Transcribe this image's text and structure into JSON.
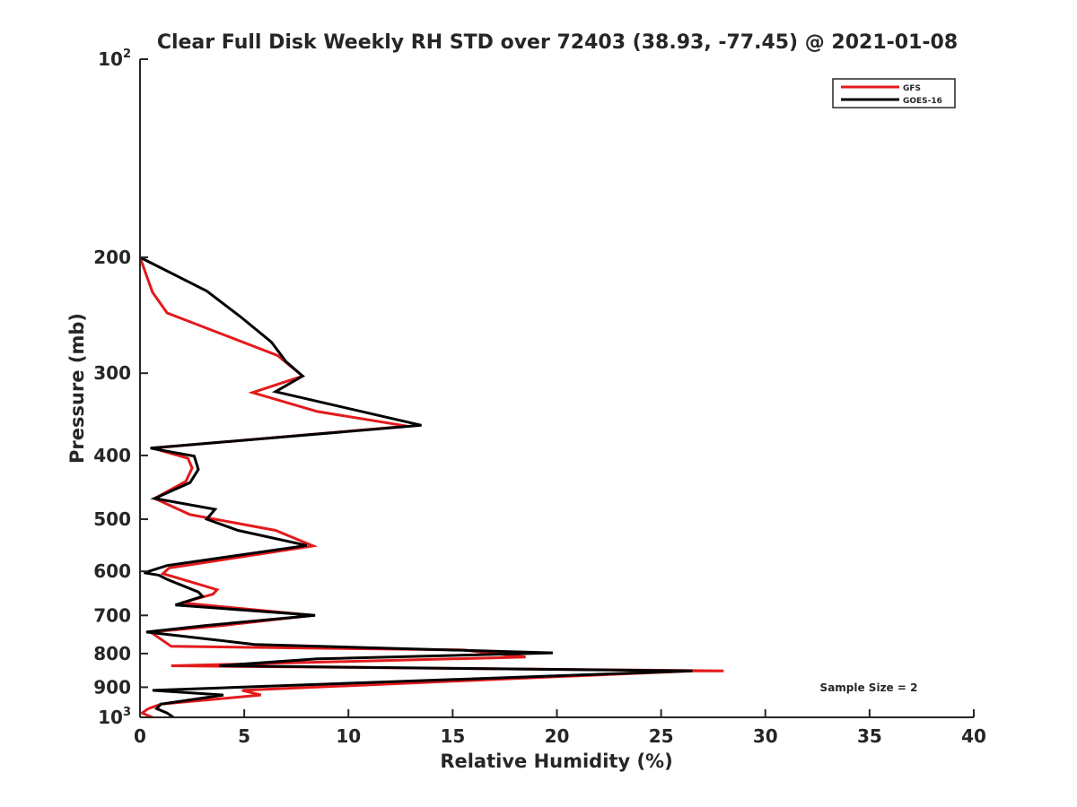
{
  "chart_data": {
    "type": "line",
    "title": "Clear Full Disk Weekly RH STD over 72403 (38.93, -77.45) @ 2021-01-08",
    "xlabel": "Relative Humidity (%)",
    "ylabel": "Pressure (mb)",
    "xlim": [
      0,
      40
    ],
    "ylim": [
      100,
      1000
    ],
    "yscale": "log",
    "y_reversed": true,
    "grid": false,
    "legend_position": "top-right",
    "xticks": [
      "0",
      "5",
      "10",
      "15",
      "20",
      "25",
      "30",
      "35",
      "40"
    ],
    "xtick_values": [
      0,
      5,
      10,
      15,
      20,
      25,
      30,
      35,
      40
    ],
    "yticks": [
      {
        "value": 100,
        "base": "10",
        "exp": "2"
      },
      {
        "value": 200,
        "label": "200"
      },
      {
        "value": 300,
        "label": "300"
      },
      {
        "value": 400,
        "label": "400"
      },
      {
        "value": 500,
        "label": "500"
      },
      {
        "value": 600,
        "label": "600"
      },
      {
        "value": 700,
        "label": "700"
      },
      {
        "value": 800,
        "label": "800"
      },
      {
        "value": 900,
        "label": "900"
      },
      {
        "value": 1000,
        "base": "10",
        "exp": "3"
      }
    ],
    "annotation": "Sample Size = 2",
    "series": [
      {
        "name": "GFS",
        "color": "#e31a1c",
        "points": [
          [
            0.6,
            1000
          ],
          [
            0.1,
            985
          ],
          [
            0.4,
            970
          ],
          [
            1.0,
            955
          ],
          [
            5.8,
            925
          ],
          [
            4.9,
            910
          ],
          [
            26.5,
            850
          ],
          [
            28.0,
            850
          ],
          [
            1.5,
            835
          ],
          [
            18.5,
            810
          ],
          [
            15.5,
            790
          ],
          [
            1.5,
            780
          ],
          [
            0.5,
            742
          ],
          [
            4.0,
            725
          ],
          [
            8.3,
            700
          ],
          [
            2.0,
            670
          ],
          [
            3.5,
            650
          ],
          [
            3.7,
            640
          ],
          [
            1.5,
            610
          ],
          [
            1.1,
            605
          ],
          [
            1.4,
            593
          ],
          [
            8.3,
            549
          ],
          [
            6.5,
            520
          ],
          [
            2.4,
            492
          ],
          [
            0.7,
            465
          ],
          [
            2.2,
            438
          ],
          [
            2.5,
            418
          ],
          [
            2.3,
            404
          ],
          [
            0.6,
            390
          ],
          [
            12.8,
            361
          ],
          [
            8.5,
            343
          ],
          [
            5.4,
            321
          ],
          [
            7.8,
            303
          ],
          [
            6.6,
            282
          ],
          [
            1.3,
            243
          ],
          [
            0.6,
            226
          ],
          [
            0.0,
            200
          ]
        ]
      },
      {
        "name": "GOES-16",
        "color": "#000000",
        "points": [
          [
            1.6,
            1000
          ],
          [
            1.3,
            985
          ],
          [
            0.8,
            970
          ],
          [
            1.0,
            955
          ],
          [
            4.0,
            925
          ],
          [
            0.6,
            910
          ],
          [
            26.5,
            850
          ],
          [
            3.8,
            835
          ],
          [
            8.5,
            815
          ],
          [
            19.8,
            798
          ],
          [
            5.5,
            775
          ],
          [
            0.3,
            742
          ],
          [
            3.2,
            725
          ],
          [
            8.4,
            700
          ],
          [
            1.7,
            675
          ],
          [
            3.0,
            655
          ],
          [
            2.8,
            645
          ],
          [
            1.3,
            617
          ],
          [
            0.9,
            608
          ],
          [
            0.2,
            603
          ],
          [
            1.3,
            588
          ],
          [
            8.0,
            548
          ],
          [
            4.7,
            520
          ],
          [
            3.2,
            500
          ],
          [
            3.6,
            483
          ],
          [
            0.7,
            465
          ],
          [
            2.4,
            440
          ],
          [
            2.8,
            420
          ],
          [
            2.6,
            401
          ],
          [
            0.5,
            390
          ],
          [
            13.5,
            360
          ],
          [
            6.5,
            320
          ],
          [
            7.8,
            303
          ],
          [
            7.0,
            288
          ],
          [
            6.3,
            269
          ],
          [
            4.8,
            246
          ],
          [
            3.2,
            225
          ],
          [
            0.0,
            200
          ]
        ]
      }
    ]
  }
}
